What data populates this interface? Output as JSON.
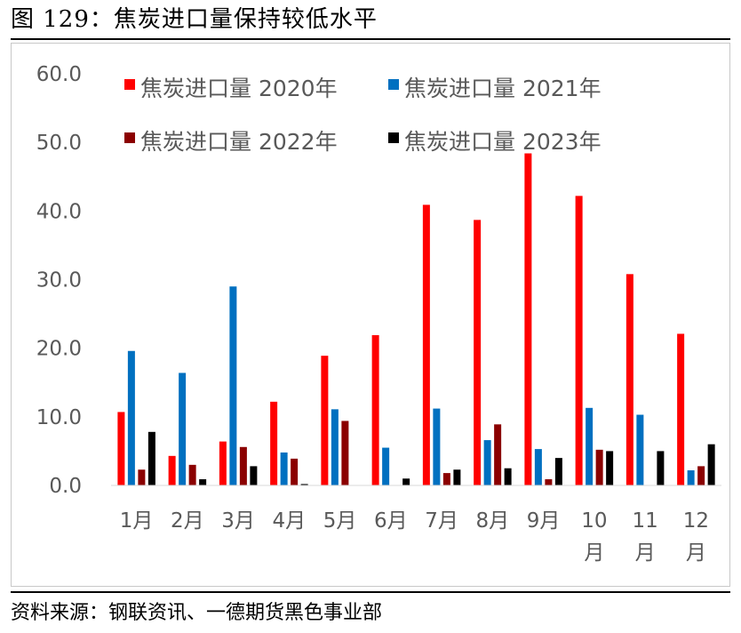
{
  "figure": {
    "title": "图 129：焦炭进口量保持较低水平",
    "source": "资料来源：钢联资讯、一德期货黑色事业部"
  },
  "chart_data": {
    "type": "bar",
    "categories": [
      "1月",
      "2月",
      "3月",
      "4月",
      "5月",
      "6月",
      "7月",
      "8月",
      "9月",
      "10月",
      "11月",
      "12月"
    ],
    "y_tick_labels": [
      "0.0",
      "10.0",
      "20.0",
      "30.0",
      "40.0",
      "50.0",
      "60.0"
    ],
    "ylim": [
      0,
      60
    ],
    "legend_position": "top",
    "grid": false,
    "series": [
      {
        "name": "焦炭进口量 2020年",
        "color": "#ff0000",
        "values": [
          10.7,
          4.3,
          6.4,
          12.2,
          18.9,
          21.9,
          40.9,
          38.7,
          48.4,
          42.2,
          30.8,
          22.1
        ]
      },
      {
        "name": "焦炭进口量 2021年",
        "color": "#0070c0",
        "values": [
          19.6,
          16.4,
          29.0,
          4.8,
          11.1,
          5.5,
          11.2,
          6.6,
          5.3,
          11.3,
          10.3,
          2.2
        ]
      },
      {
        "name": "焦炭进口量 2022年",
        "color": "#8b0000",
        "values": [
          2.3,
          3.0,
          5.6,
          3.9,
          9.4,
          0.0,
          1.8,
          8.9,
          0.9,
          5.2,
          0.0,
          2.8
        ]
      },
      {
        "name": "焦炭进口量 2023年",
        "color": "#000000",
        "values": [
          7.8,
          0.9,
          2.8,
          0.2,
          0.0,
          1.0,
          2.3,
          2.5,
          4.0,
          5.0,
          5.0,
          6.0
        ]
      }
    ]
  }
}
